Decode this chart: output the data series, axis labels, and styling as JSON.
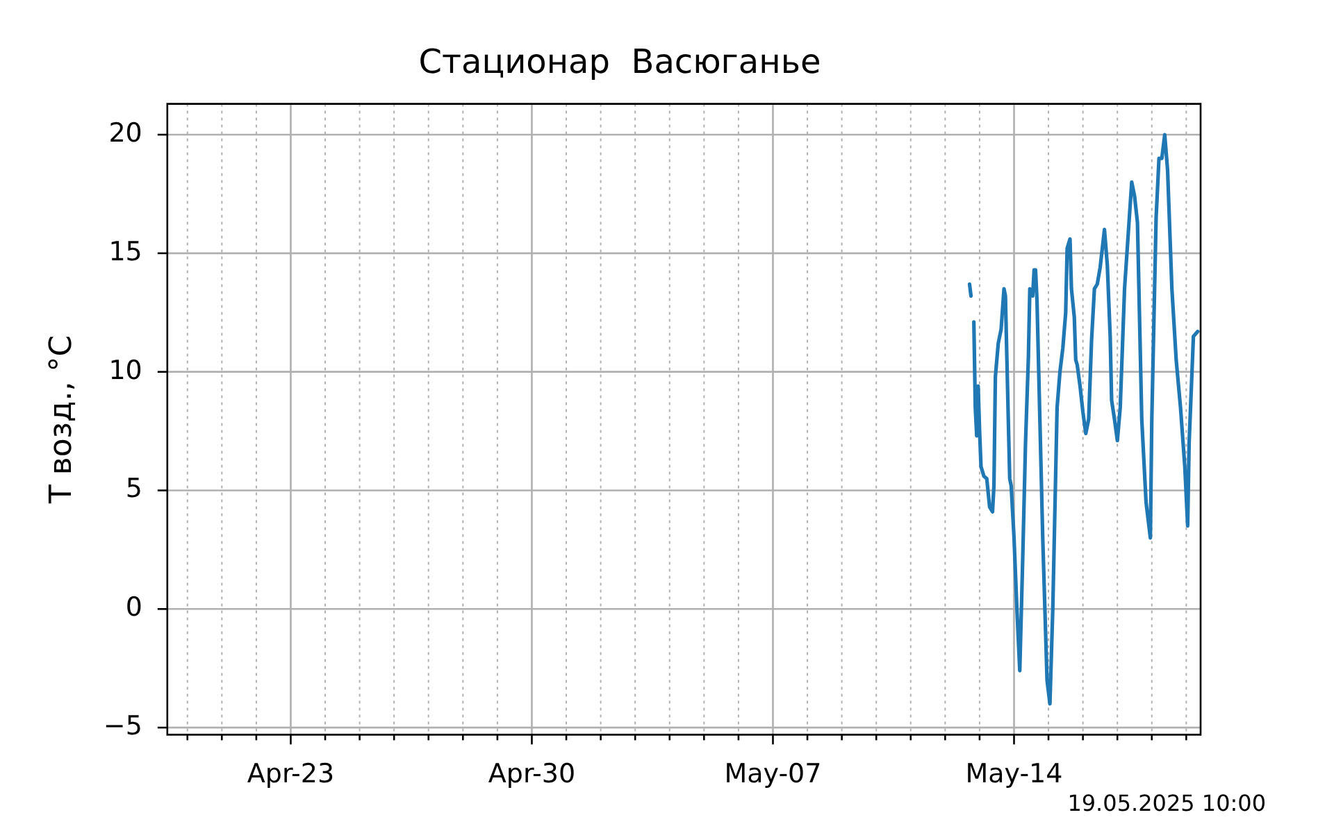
{
  "chart_data": {
    "type": "line",
    "title": "Стационар  Васюганье",
    "ylabel": "T возд., °C",
    "annotations": [
      "19.05.2025 10:00"
    ],
    "x": [
      "2025-05-12T17:00",
      "2025-05-12T18:00",
      "2025-05-12T19:00",
      "2025-05-12T20:00",
      "2025-05-12T21:00",
      "2025-05-12T22:00",
      "2025-05-12T23:00",
      "2025-05-13T00:00",
      "2025-05-13T01:00",
      "2025-05-13T03:00",
      "2025-05-13T05:00",
      "2025-05-13T07:00",
      "2025-05-13T09:00",
      "2025-05-13T10:00",
      "2025-05-13T11:00",
      "2025-05-13T13:00",
      "2025-05-13T15:00",
      "2025-05-13T17:00",
      "2025-05-13T18:00",
      "2025-05-13T20:00",
      "2025-05-13T21:00",
      "2025-05-13T22:00",
      "2025-05-14T00:00",
      "2025-05-14T02:00",
      "2025-05-14T04:00",
      "2025-05-14T06:00",
      "2025-05-14T08:00",
      "2025-05-14T10:00",
      "2025-05-14T11:00",
      "2025-05-14T13:00",
      "2025-05-14T14:00",
      "2025-05-14T15:00",
      "2025-05-14T16:00",
      "2025-05-14T18:00",
      "2025-05-14T20:00",
      "2025-05-14T23:00",
      "2025-05-15T01:00",
      "2025-05-15T03:00",
      "2025-05-15T06:00",
      "2025-05-15T08:00",
      "2025-05-15T10:00",
      "2025-05-15T12:00",
      "2025-05-15T13:00",
      "2025-05-15T15:00",
      "2025-05-15T16:00",
      "2025-05-15T18:00",
      "2025-05-15T19:00",
      "2025-05-15T20:00",
      "2025-05-15T22:00",
      "2025-05-16T00:00",
      "2025-05-16T02:00",
      "2025-05-16T04:00",
      "2025-05-16T06:00",
      "2025-05-16T08:00",
      "2025-05-16T10:00",
      "2025-05-16T12:00",
      "2025-05-16T15:00",
      "2025-05-16T17:00",
      "2025-05-16T19:00",
      "2025-05-16T20:00",
      "2025-05-16T22:00",
      "2025-05-17T00:00",
      "2025-05-17T02:00",
      "2025-05-17T05:00",
      "2025-05-17T07:00",
      "2025-05-17T10:00",
      "2025-05-17T12:00",
      "2025-05-17T14:00",
      "2025-05-17T17:00",
      "2025-05-17T20:00",
      "2025-05-17T23:00",
      "2025-05-18T00:00",
      "2025-05-18T03:00",
      "2025-05-18T05:00",
      "2025-05-18T07:00",
      "2025-05-18T09:00",
      "2025-05-18T11:00",
      "2025-05-18T14:00",
      "2025-05-18T17:00",
      "2025-05-18T20:00",
      "2025-05-18T23:00",
      "2025-05-19T01:00",
      "2025-05-19T02:00",
      "2025-05-19T05:00",
      "2025-05-19T08:00"
    ],
    "series": [
      {
        "color": "#1f77b4",
        "values": [
          13.7,
          13.2,
          null,
          12.1,
          8.5,
          7.3,
          9.4,
          7.5,
          6.0,
          5.6,
          5.5,
          4.3,
          4.1,
          5.2,
          9.8,
          11.2,
          11.8,
          13.5,
          13.2,
          8.0,
          5.5,
          5.2,
          3.0,
          0,
          -2.6,
          2,
          7,
          10.6,
          13.5,
          13.2,
          14.3,
          14.3,
          13.0,
          8,
          3,
          -3,
          -4.0,
          0,
          8.5,
          10.0,
          11.0,
          12.5,
          15.2,
          15.6,
          13.5,
          12.3,
          10.5,
          10.3,
          9.4,
          8.3,
          7.4,
          8.0,
          11.3,
          13.5,
          13.7,
          14.4,
          16.0,
          14.5,
          11.5,
          8.8,
          8.0,
          7.1,
          8.5,
          13.5,
          15.3,
          18.0,
          17.4,
          16.3,
          8.0,
          4.5,
          3.0,
          8,
          16.5,
          19.0,
          19.0,
          20.0,
          18.5,
          13.5,
          10.5,
          8.5,
          6.0,
          3.5,
          7.0,
          11.5,
          11.7
        ]
      }
    ],
    "xlim": [
      "2025-04-19T10:00",
      "2025-05-19T10:00"
    ],
    "xticks": [
      {
        "value": "2025-04-20",
        "label": null
      },
      {
        "value": "2025-04-21",
        "label": null
      },
      {
        "value": "2025-04-22",
        "label": null
      },
      {
        "value": "2025-04-23",
        "label": "Apr-23"
      },
      {
        "value": "2025-04-24",
        "label": null
      },
      {
        "value": "2025-04-25",
        "label": null
      },
      {
        "value": "2025-04-26",
        "label": null
      },
      {
        "value": "2025-04-27",
        "label": null
      },
      {
        "value": "2025-04-28",
        "label": null
      },
      {
        "value": "2025-04-29",
        "label": null
      },
      {
        "value": "2025-04-30",
        "label": "Apr-30"
      },
      {
        "value": "2025-05-01",
        "label": null
      },
      {
        "value": "2025-05-02",
        "label": null
      },
      {
        "value": "2025-05-03",
        "label": null
      },
      {
        "value": "2025-05-04",
        "label": null
      },
      {
        "value": "2025-05-05",
        "label": null
      },
      {
        "value": "2025-05-06",
        "label": null
      },
      {
        "value": "2025-05-07",
        "label": "May-07"
      },
      {
        "value": "2025-05-08",
        "label": null
      },
      {
        "value": "2025-05-09",
        "label": null
      },
      {
        "value": "2025-05-10",
        "label": null
      },
      {
        "value": "2025-05-11",
        "label": null
      },
      {
        "value": "2025-05-12",
        "label": null
      },
      {
        "value": "2025-05-13",
        "label": null
      },
      {
        "value": "2025-05-14",
        "label": "May-14"
      },
      {
        "value": "2025-05-15",
        "label": null
      },
      {
        "value": "2025-05-16",
        "label": null
      },
      {
        "value": "2025-05-17",
        "label": null
      },
      {
        "value": "2025-05-18",
        "label": null
      },
      {
        "value": "2025-05-19",
        "label": null
      }
    ],
    "ylim": [
      -5.3,
      21.3
    ],
    "yticks": [
      -5,
      0,
      5,
      10,
      15,
      20
    ],
    "grid": true,
    "legend": false,
    "line_style": "solid",
    "marker": "none"
  }
}
